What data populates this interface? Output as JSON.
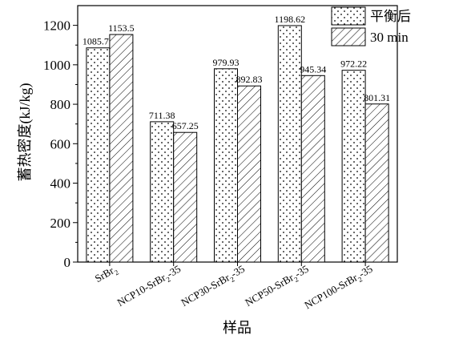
{
  "chart_data": {
    "type": "bar",
    "xlabel": "样品",
    "ylabel": "蓄热密度(kJ/kg)",
    "ylim": [
      0,
      1300
    ],
    "yticks": [
      0,
      200,
      400,
      600,
      800,
      1000,
      1200
    ],
    "grid": false,
    "legend_position": "top-right",
    "categories": [
      {
        "pre": "SrBr",
        "sub": "2",
        "post": ""
      },
      {
        "pre": "NCP10-SrBr",
        "sub": "2",
        "post": "-35"
      },
      {
        "pre": "NCP30-SrBr",
        "sub": "2",
        "post": "-35"
      },
      {
        "pre": "NCP50-SrBr",
        "sub": "2",
        "post": "-35"
      },
      {
        "pre": "NCP100-SrBr",
        "sub": "2",
        "post": "-35"
      }
    ],
    "series": [
      {
        "name": "平衡后",
        "pattern": "dots",
        "values": [
          1085.71,
          711.38,
          979.93,
          1198.62,
          972.22
        ],
        "labels": [
          "1085.71",
          "711.38",
          "979.93",
          "1198.62",
          "972.22"
        ]
      },
      {
        "name": "30 min",
        "pattern": "hatch",
        "values": [
          1153.5,
          657.25,
          892.83,
          945.34,
          801.31
        ],
        "labels": [
          "1153.5",
          "657.25",
          "892.83",
          "945.34",
          "801.31"
        ]
      }
    ]
  }
}
